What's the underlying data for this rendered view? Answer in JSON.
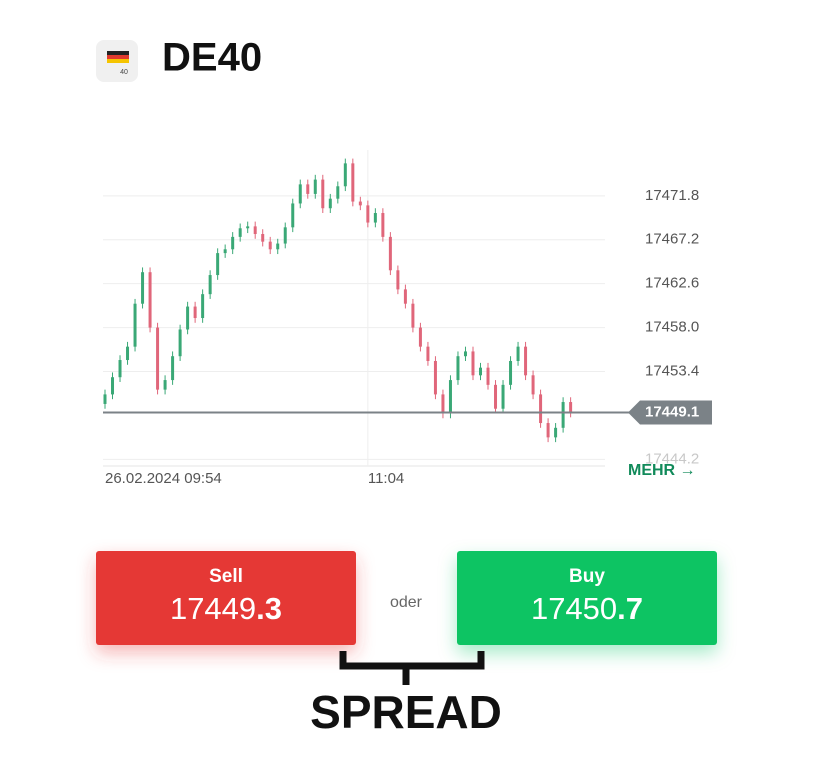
{
  "header": {
    "icon_label": "40",
    "title": "DE40"
  },
  "chart_data": {
    "type": "candlestick",
    "categories": [
      "26.02.2024 09:54",
      null,
      null,
      null,
      null,
      null,
      null,
      null,
      null,
      null,
      null,
      null,
      null,
      null,
      null,
      null,
      null,
      null,
      null,
      null,
      null,
      null,
      null,
      null,
      null,
      null,
      null,
      null,
      null,
      null,
      null,
      null,
      null,
      null,
      null,
      "11:04",
      null,
      null,
      null,
      null,
      null,
      null,
      null,
      null,
      null,
      null,
      null,
      null,
      null,
      null,
      null,
      null,
      null,
      null,
      null,
      null,
      null,
      null,
      null,
      null,
      null,
      null,
      null
    ],
    "open": [
      17450.0,
      17451.0,
      17452.8,
      17454.6,
      17456.0,
      17460.5,
      17463.8,
      17458.0,
      17451.5,
      17452.5,
      17455.0,
      17457.8,
      17460.2,
      17459.0,
      17461.5,
      17463.5,
      17465.8,
      17466.2,
      17467.5,
      17468.4,
      17468.6,
      17467.8,
      17467.0,
      17466.2,
      17466.8,
      17468.5,
      17471.0,
      17473.0,
      17472.0,
      17473.5,
      17470.5,
      17471.5,
      17472.8,
      17475.2,
      17471.2,
      17470.8,
      17469.0,
      17470.0,
      17467.5,
      17464.0,
      17462.0,
      17460.5,
      17458.0,
      17456.0,
      17454.5,
      17451.0,
      17449.0,
      17452.5,
      17455.0,
      17455.5,
      17453.0,
      17453.8,
      17452.0,
      17449.5,
      17452.0,
      17454.5,
      17456.0,
      17453.0,
      17451.0,
      17448.0,
      17446.5,
      17447.5,
      17450.2
    ],
    "high": [
      17451.5,
      17453.3,
      17455.1,
      17456.5,
      17461.0,
      17464.3,
      17464.3,
      17458.5,
      17453.0,
      17455.5,
      17458.3,
      17460.7,
      17460.7,
      17462.0,
      17464.0,
      17466.3,
      17466.7,
      17468.0,
      17468.9,
      17469.1,
      17469.1,
      17468.3,
      17467.5,
      17467.3,
      17469.0,
      17471.5,
      17473.5,
      17473.5,
      17474.0,
      17474.0,
      17472.0,
      17473.3,
      17475.7,
      17475.7,
      17471.7,
      17471.3,
      17470.5,
      17470.5,
      17468.0,
      17464.5,
      17462.5,
      17461.0,
      17458.5,
      17456.5,
      17455.0,
      17451.5,
      17453.0,
      17455.5,
      17456.0,
      17456.0,
      17454.3,
      17454.3,
      17452.5,
      17452.5,
      17455.0,
      17456.5,
      17456.5,
      17453.5,
      17451.5,
      17448.5,
      17448.0,
      17450.7,
      17450.7
    ],
    "low": [
      17449.5,
      17450.5,
      17452.3,
      17454.1,
      17455.5,
      17460.0,
      17457.5,
      17451.0,
      17451.0,
      17452.0,
      17454.5,
      17457.3,
      17458.5,
      17458.5,
      17461.0,
      17463.0,
      17465.3,
      17465.7,
      17467.0,
      17467.9,
      17467.3,
      17466.5,
      17465.7,
      17465.7,
      17466.3,
      17468.0,
      17470.5,
      17471.5,
      17471.5,
      17470.0,
      17470.0,
      17471.0,
      17472.3,
      17470.7,
      17470.3,
      17468.5,
      17468.5,
      17467.0,
      17463.5,
      17461.5,
      17460.0,
      17457.5,
      17455.5,
      17454.0,
      17450.5,
      17448.5,
      17448.5,
      17452.0,
      17454.5,
      17452.5,
      17452.5,
      17451.5,
      17449.0,
      17449.0,
      17451.5,
      17454.0,
      17452.5,
      17450.5,
      17447.5,
      17446.0,
      17446.0,
      17447.0,
      17448.6
    ],
    "close": [
      17451.0,
      17452.8,
      17454.6,
      17456.0,
      17460.5,
      17463.8,
      17458.0,
      17451.5,
      17452.5,
      17455.0,
      17457.8,
      17460.2,
      17459.0,
      17461.5,
      17463.5,
      17465.8,
      17466.2,
      17467.5,
      17468.4,
      17468.6,
      17467.8,
      17467.0,
      17466.2,
      17466.8,
      17468.5,
      17471.0,
      17473.0,
      17472.0,
      17473.5,
      17470.5,
      17471.5,
      17472.8,
      17475.2,
      17471.2,
      17470.8,
      17469.0,
      17470.0,
      17467.5,
      17464.0,
      17462.0,
      17460.5,
      17458.0,
      17456.0,
      17454.5,
      17451.0,
      17449.0,
      17452.5,
      17455.0,
      17455.5,
      17453.0,
      17453.8,
      17452.0,
      17449.5,
      17452.0,
      17454.5,
      17456.0,
      17453.0,
      17451.0,
      17448.0,
      17446.5,
      17447.5,
      17450.2,
      17449.1
    ],
    "up_color": "#3aa876",
    "down_color": "#e0667a",
    "ylim": [
      17443.5,
      17476.6
    ],
    "yticks": [
      17444.2,
      17453.4,
      {
        "value": 17458.0,
        "label": "17458.0"
      },
      17462.6,
      17467.2,
      17471.8
    ],
    "current_price": 17449.1,
    "grid": true
  },
  "more_link": "MEHR →",
  "trade": {
    "sell": {
      "label": "Sell",
      "price_main": "17449",
      "price_decimal": ".3"
    },
    "separator": "oder",
    "buy": {
      "label": "Buy",
      "price_main": "17450",
      "price_decimal": ".7"
    }
  },
  "annotation": "SPREAD"
}
